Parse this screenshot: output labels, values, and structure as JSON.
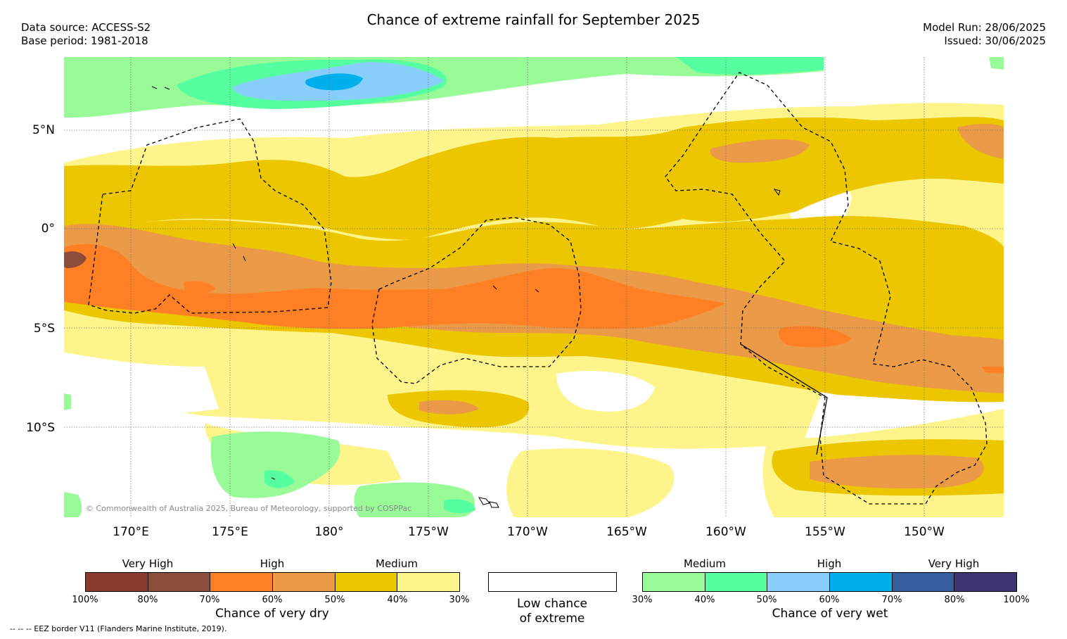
{
  "title": "Chance of extreme rainfall for September 2025",
  "header_left": {
    "data_source": "Data source: ACCESS-S2",
    "base_period": "Base period: 1981-2018"
  },
  "header_right": {
    "model_run": "Model Run: 28/06/2025",
    "issued": "Issued: 30/06/2025"
  },
  "map": {
    "lat_labels": [
      "5°N",
      "0°",
      "5°S",
      "10°S"
    ],
    "lon_labels": [
      "170°E",
      "175°E",
      "180°",
      "175°W",
      "170°W",
      "165°W",
      "160°W",
      "155°W",
      "150°W"
    ],
    "copyright": "© Commonwealth of Australia 2025, Bureau of Meteorology, supported by COSPPac",
    "grid": true
  },
  "legend_dry": {
    "category_labels": [
      "Very High",
      "High",
      "Medium"
    ],
    "colors": [
      "#8b3a2f",
      "#8b4c3a",
      "#ff7f24",
      "#eb9a48",
      "#ecc600",
      "#fdf58c"
    ],
    "percent_labels": [
      "100%",
      "80%",
      "70%",
      "60%",
      "50%",
      "40%",
      "30%"
    ],
    "caption": "Chance of very dry"
  },
  "legend_low": {
    "caption_line1": "Low chance",
    "caption_line2": "of extreme"
  },
  "legend_wet": {
    "category_labels": [
      "Medium",
      "High",
      "Very High"
    ],
    "colors": [
      "#98fb98",
      "#55ff9f",
      "#87cefa",
      "#00b0ec",
      "#345f9c",
      "#3b3574"
    ],
    "percent_labels": [
      "30%",
      "40%",
      "50%",
      "60%",
      "70%",
      "80%",
      "100%"
    ],
    "caption": "Chance of very wet"
  },
  "footnote": "-- -- -- EEZ border V11 (Flanders Marine Institute, 2019)."
}
